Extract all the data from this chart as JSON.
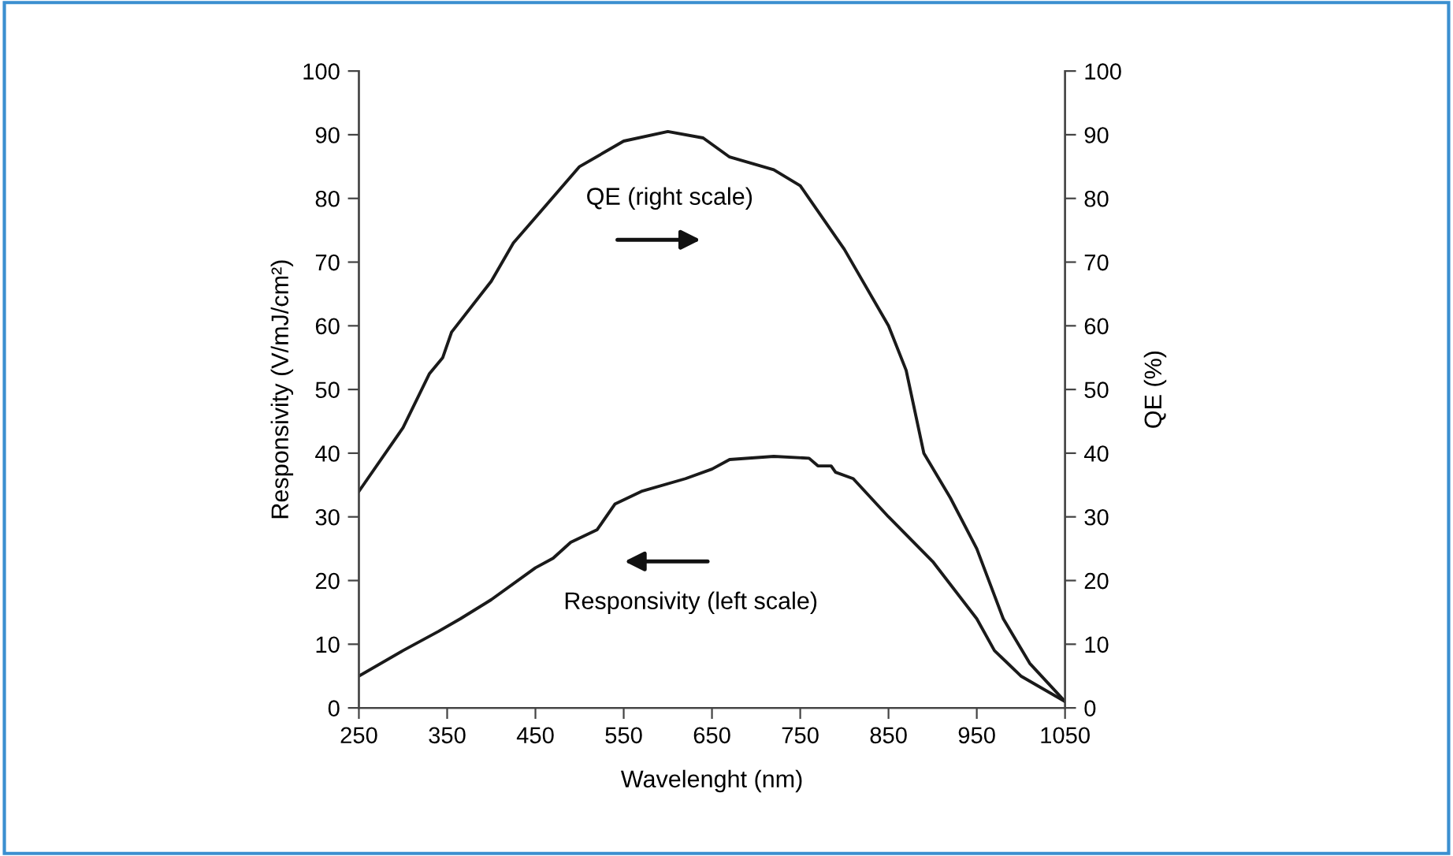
{
  "chart_data": {
    "type": "line",
    "xlabel": "Wavelenght (nm)",
    "ylabel": "Responsivity (V/mJ/cm²)",
    "y2label": "QE (%)",
    "xlim": [
      250,
      1050
    ],
    "xticks": [
      250,
      350,
      450,
      550,
      650,
      750,
      850,
      950,
      1050
    ],
    "ylim": [
      0,
      100
    ],
    "yticks": [
      0,
      10,
      20,
      30,
      40,
      50,
      60,
      70,
      80,
      90,
      100
    ],
    "y2lim": [
      0,
      100
    ],
    "y2ticks": [
      0,
      10,
      20,
      30,
      40,
      50,
      60,
      70,
      80,
      90,
      100
    ],
    "grid": false,
    "legend": false,
    "annotations": [
      "QE (right scale)",
      "Responsivity (left scale)"
    ],
    "series": [
      {
        "axis": "y2",
        "color": "#1a1a1a",
        "x": [
          250,
          300,
          330,
          345,
          355,
          400,
          425,
          450,
          500,
          550,
          600,
          640,
          670,
          720,
          750,
          800,
          850,
          870,
          890,
          920,
          950,
          980,
          1010,
          1050
        ],
        "values": [
          34,
          44,
          52.5,
          55,
          59,
          67,
          73,
          77,
          85,
          89,
          90.5,
          89.5,
          86.5,
          84.5,
          82,
          72,
          60,
          53,
          40,
          33,
          25,
          14,
          7,
          1
        ]
      },
      {
        "axis": "y",
        "color": "#1a1a1a",
        "x": [
          250,
          300,
          340,
          365,
          400,
          450,
          470,
          490,
          520,
          540,
          570,
          620,
          650,
          670,
          720,
          760,
          770,
          785,
          790,
          810,
          850,
          900,
          950,
          970,
          1000,
          1050
        ],
        "values": [
          5,
          9,
          12,
          14,
          17,
          22,
          23.5,
          26,
          28,
          32,
          34,
          36,
          37.5,
          39,
          39.5,
          39.2,
          38,
          38,
          37,
          36,
          30,
          23,
          14,
          9,
          5,
          1
        ]
      }
    ]
  }
}
